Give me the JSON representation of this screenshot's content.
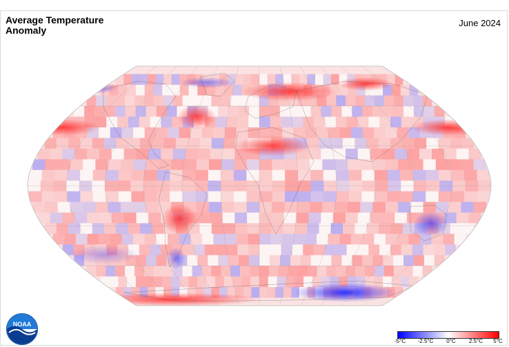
{
  "header": {
    "title_line1": "Average Temperature",
    "title_line2": "Anomaly",
    "date": "June 2024"
  },
  "legend": {
    "ticks": [
      "-5°C",
      "-2.5°C",
      "0°C",
      "2.5°C",
      "5°C"
    ],
    "colors": {
      "cold": "#0000ff",
      "neutral": "#ffffff",
      "warm": "#ff0000"
    }
  },
  "logo": {
    "text": "NOAA",
    "icon": "noaa-logo-icon"
  },
  "map": {
    "projection": "robinson",
    "graticule": true,
    "coastlines": true
  }
}
